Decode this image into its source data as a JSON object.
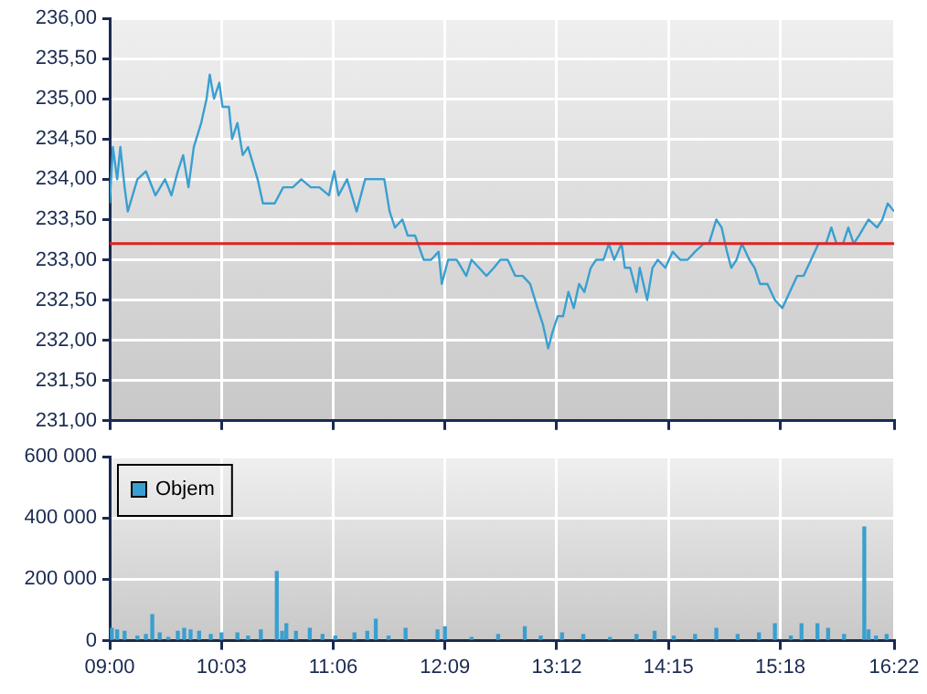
{
  "chart_data": [
    {
      "type": "line",
      "xlim": [
        9,
        16.37
      ],
      "xticks": [
        {
          "value": 9,
          "label": null
        },
        {
          "value": 10.05,
          "label": null
        },
        {
          "value": 11.1,
          "label": null
        },
        {
          "value": 12.15,
          "label": null
        },
        {
          "value": 13.2,
          "label": null
        },
        {
          "value": 14.25,
          "label": null
        },
        {
          "value": 15.3,
          "label": null
        },
        {
          "value": 16.37,
          "label": null
        }
      ],
      "ylim": [
        231,
        236
      ],
      "yticks": [
        {
          "value": 231,
          "label": "231,00"
        },
        {
          "value": 231.5,
          "label": "231,50"
        },
        {
          "value": 232,
          "label": "232,00"
        },
        {
          "value": 232.5,
          "label": "232,50"
        },
        {
          "value": 233,
          "label": "233,00"
        },
        {
          "value": 233.5,
          "label": "233,50"
        },
        {
          "value": 234,
          "label": "234,00"
        },
        {
          "value": 234.5,
          "label": "234,50"
        },
        {
          "value": 235,
          "label": "235,00"
        },
        {
          "value": 235.5,
          "label": "235,50"
        },
        {
          "value": 236,
          "label": "236,00"
        }
      ],
      "tick_labels": "y",
      "grid": true,
      "legend": false,
      "ref_lines": [
        {
          "axis": "y",
          "value": 233.2,
          "color": "#e02020"
        }
      ],
      "series": [
        {
          "color": "#3a9fd0",
          "x": [
            9.0,
            9.03,
            9.07,
            9.1,
            9.14,
            9.17,
            9.26,
            9.34,
            9.43,
            9.52,
            9.58,
            9.64,
            9.69,
            9.74,
            9.79,
            9.86,
            9.91,
            9.94,
            9.98,
            10.03,
            10.06,
            10.12,
            10.15,
            10.2,
            10.25,
            10.3,
            10.39,
            10.44,
            10.55,
            10.63,
            10.72,
            10.8,
            10.89,
            10.97,
            11.06,
            11.11,
            11.15,
            11.23,
            11.32,
            11.4,
            11.49,
            11.58,
            11.63,
            11.68,
            11.75,
            11.8,
            11.87,
            11.95,
            12.02,
            12.09,
            12.12,
            12.18,
            12.26,
            12.35,
            12.4,
            12.47,
            12.54,
            12.61,
            12.67,
            12.74,
            12.81,
            12.88,
            12.95,
            13.02,
            13.07,
            13.12,
            13.16,
            13.21,
            13.26,
            13.31,
            13.36,
            13.41,
            13.46,
            13.52,
            13.57,
            13.64,
            13.69,
            13.74,
            13.81,
            13.84,
            13.89,
            13.95,
            13.98,
            14.05,
            14.1,
            14.15,
            14.22,
            14.29,
            14.36,
            14.43,
            14.5,
            14.58,
            14.63,
            14.7,
            14.75,
            14.8,
            14.84,
            14.89,
            14.94,
            15.01,
            15.06,
            15.11,
            15.18,
            15.25,
            15.32,
            15.39,
            15.46,
            15.52,
            15.59,
            15.66,
            15.73,
            15.78,
            15.83,
            15.89,
            15.94,
            15.99,
            16.04,
            16.13,
            16.21,
            16.26,
            16.31,
            16.37
          ],
          "values": [
            233.7,
            234.4,
            234.0,
            234.4,
            233.9,
            233.6,
            234.0,
            234.1,
            233.8,
            234.0,
            233.8,
            234.1,
            234.3,
            233.9,
            234.4,
            234.7,
            235.0,
            235.3,
            235.0,
            235.2,
            234.9,
            234.9,
            234.5,
            234.7,
            234.3,
            234.4,
            234.0,
            233.7,
            233.7,
            233.9,
            233.9,
            234.0,
            233.9,
            233.9,
            233.8,
            234.1,
            233.8,
            234.0,
            233.6,
            234.0,
            234.0,
            234.0,
            233.6,
            233.4,
            233.5,
            233.3,
            233.3,
            233.0,
            233.0,
            233.1,
            232.7,
            233.0,
            233.0,
            232.8,
            233.0,
            232.9,
            232.8,
            232.9,
            233.0,
            233.0,
            232.8,
            232.8,
            232.7,
            232.4,
            232.2,
            231.9,
            232.1,
            232.3,
            232.3,
            232.6,
            232.4,
            232.7,
            232.6,
            232.9,
            233.0,
            233.0,
            233.2,
            233.0,
            233.2,
            232.9,
            232.9,
            232.6,
            232.9,
            232.5,
            232.9,
            233.0,
            232.9,
            233.1,
            233.0,
            233.0,
            233.1,
            233.2,
            233.2,
            233.5,
            233.4,
            233.1,
            232.9,
            233.0,
            233.2,
            233.0,
            232.9,
            232.7,
            232.7,
            232.5,
            232.4,
            232.6,
            232.8,
            232.8,
            233.0,
            233.2,
            233.2,
            233.4,
            233.2,
            233.2,
            233.4,
            233.2,
            233.3,
            233.5,
            233.4,
            233.5,
            233.7,
            233.6
          ]
        }
      ]
    },
    {
      "type": "bar",
      "xlim": [
        9,
        16.37
      ],
      "xticks": [
        {
          "value": 9,
          "label": "09:00"
        },
        {
          "value": 10.05,
          "label": "10:03"
        },
        {
          "value": 11.1,
          "label": "11:06"
        },
        {
          "value": 12.15,
          "label": "12:09"
        },
        {
          "value": 13.2,
          "label": "13:12"
        },
        {
          "value": 14.25,
          "label": "14:15"
        },
        {
          "value": 15.3,
          "label": "15:18"
        },
        {
          "value": 16.37,
          "label": "16:22"
        }
      ],
      "ylim": [
        0,
        600000
      ],
      "yticks": [
        {
          "value": 0,
          "label": "0"
        },
        {
          "value": 200000,
          "label": "200 000"
        },
        {
          "value": 400000,
          "label": "400 000"
        },
        {
          "value": 600000,
          "label": "600 000"
        }
      ],
      "grid": true,
      "legend": "top left",
      "series": [
        {
          "name": "Objem",
          "color": "#3a9fd0",
          "x": [
            9.02,
            9.07,
            9.14,
            9.26,
            9.34,
            9.4,
            9.47,
            9.55,
            9.64,
            9.7,
            9.76,
            9.84,
            9.95,
            10.05,
            10.2,
            10.3,
            10.42,
            10.57,
            10.62,
            10.66,
            10.75,
            10.88,
            11.0,
            11.12,
            11.3,
            11.42,
            11.5,
            11.62,
            11.78,
            12.08,
            12.15,
            12.4,
            12.65,
            12.9,
            13.05,
            13.25,
            13.45,
            13.7,
            13.95,
            14.12,
            14.3,
            14.5,
            14.7,
            14.9,
            15.1,
            15.25,
            15.4,
            15.5,
            15.65,
            15.75,
            15.9,
            16.09,
            16.13,
            16.2,
            16.3
          ],
          "values": [
            40000,
            35000,
            30000,
            15000,
            20000,
            85000,
            25000,
            10000,
            30000,
            40000,
            35000,
            30000,
            20000,
            25000,
            25000,
            15000,
            35000,
            225000,
            30000,
            55000,
            30000,
            40000,
            20000,
            15000,
            25000,
            30000,
            70000,
            15000,
            40000,
            35000,
            45000,
            10000,
            20000,
            45000,
            15000,
            25000,
            20000,
            10000,
            20000,
            30000,
            15000,
            20000,
            40000,
            20000,
            25000,
            55000,
            15000,
            55000,
            55000,
            40000,
            20000,
            370000,
            35000,
            15000,
            20000
          ]
        }
      ]
    }
  ]
}
